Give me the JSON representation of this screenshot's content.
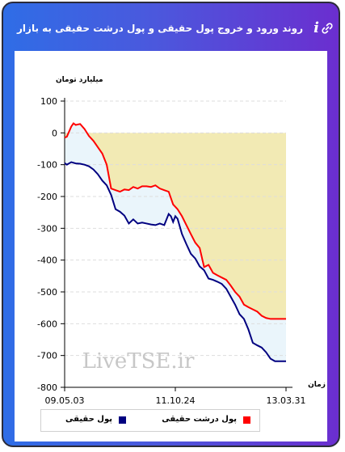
{
  "header": {
    "title": "روند ورود و خروج پول حقیقی و پول درشت حقیقی به بازار",
    "info_icon": "info-icon",
    "link_icon": "link-icon"
  },
  "watermark": "LiveTSE.ir",
  "colors": {
    "real_money": "#000080",
    "large_real_money": "#ff0000",
    "fill_between": "#eaf5fb",
    "fill_above": "#f2eab4"
  },
  "chart_data": {
    "type": "line",
    "ylabel": "میلیارد تومان",
    "xlabel": "زمان",
    "ylim": [
      -800,
      100
    ],
    "yticks": [
      100,
      0,
      -100,
      -200,
      -300,
      -400,
      -500,
      -600,
      -700,
      -800
    ],
    "x_tick_labels": [
      "09.05.03",
      "11.10.24",
      "13.03.31"
    ],
    "x_tick_positions": [
      0,
      50,
      100
    ],
    "xlim": [
      0,
      100
    ],
    "legend": {
      "placement": "bottom"
    },
    "series": [
      {
        "name": "پول حقیقی",
        "color": "#000080",
        "x": [
          0,
          1,
          3,
          5,
          7,
          9,
          11,
          13,
          15,
          17,
          19,
          21,
          23,
          25,
          27,
          29,
          31,
          33,
          35,
          37,
          39,
          41,
          43,
          45,
          47,
          48,
          49,
          50,
          51,
          53,
          55,
          57,
          59,
          61,
          63,
          65,
          67,
          69,
          71,
          73,
          75,
          77,
          78,
          79,
          81,
          83,
          85,
          87,
          89,
          91,
          93,
          95,
          97,
          100
        ],
        "values": [
          -95,
          -100,
          -92,
          -96,
          -97,
          -100,
          -105,
          -115,
          -130,
          -150,
          -165,
          -195,
          -240,
          -248,
          -260,
          -285,
          -272,
          -285,
          -282,
          -285,
          -288,
          -290,
          -285,
          -290,
          -255,
          -262,
          -280,
          -262,
          -270,
          -318,
          -350,
          -380,
          -395,
          -420,
          -432,
          -458,
          -462,
          -468,
          -475,
          -490,
          -515,
          -540,
          -555,
          -570,
          -585,
          -618,
          -660,
          -668,
          -675,
          -690,
          -710,
          -718,
          -718,
          -718
        ]
      },
      {
        "name": "پول درشت حقیقی",
        "color": "#ff0000",
        "x": [
          0,
          1,
          3,
          4,
          5,
          7,
          9,
          11,
          13,
          15,
          17,
          19,
          21,
          23,
          25,
          27,
          29,
          31,
          33,
          35,
          37,
          39,
          41,
          43,
          45,
          47,
          49,
          51,
          53,
          55,
          57,
          59,
          61,
          63,
          65,
          67,
          69,
          71,
          73,
          75,
          77,
          79,
          81,
          83,
          85,
          87,
          89,
          91,
          93,
          95,
          97,
          100
        ],
        "values": [
          -15,
          -12,
          20,
          30,
          25,
          28,
          12,
          -10,
          -25,
          -45,
          -65,
          -100,
          -175,
          -180,
          -185,
          -178,
          -180,
          -170,
          -175,
          -168,
          -168,
          -170,
          -165,
          -175,
          -180,
          -185,
          -225,
          -240,
          -262,
          -290,
          -318,
          -345,
          -362,
          -422,
          -415,
          -440,
          -448,
          -455,
          -462,
          -480,
          -500,
          -515,
          -540,
          -548,
          -555,
          -562,
          -575,
          -582,
          -585,
          -585,
          -585,
          -585
        ]
      }
    ]
  }
}
